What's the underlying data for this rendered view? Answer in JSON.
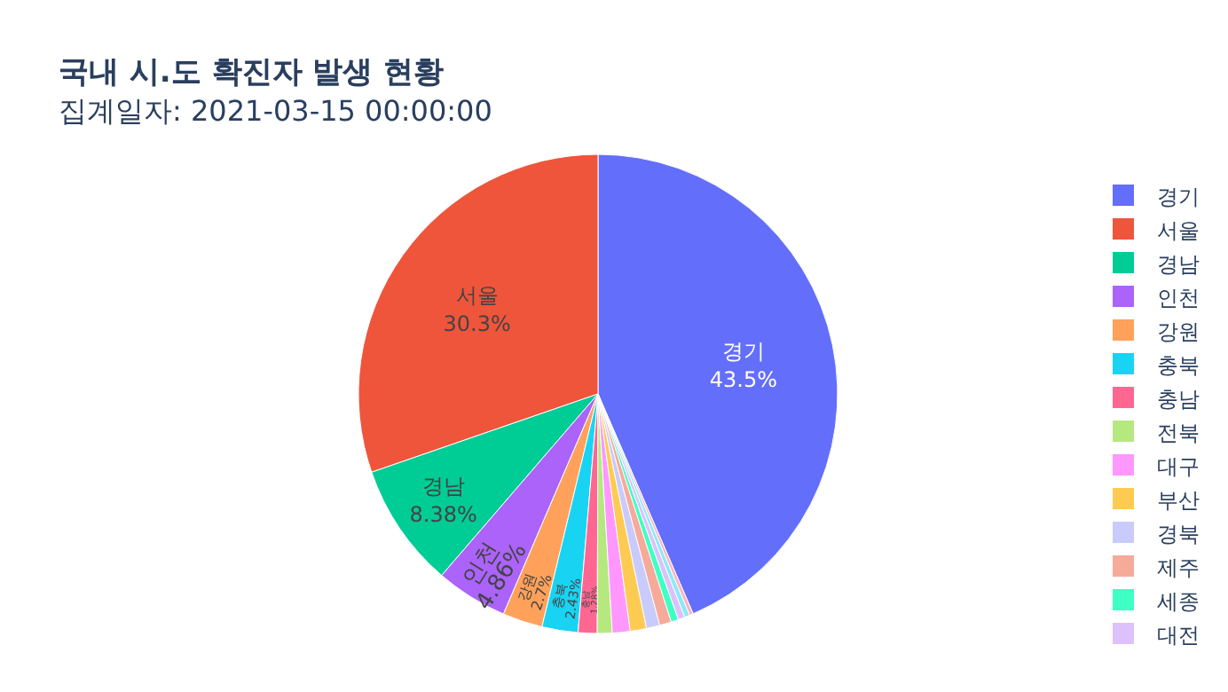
{
  "chart_data": {
    "type": "pie",
    "title": "국내 시.도 확진자 발생 현황",
    "subtitle": "집계일자: 2021-03-15 00:00:00",
    "categories": [
      "경기",
      "서울",
      "경남",
      "인천",
      "강원",
      "충북",
      "충남",
      "전북",
      "대구",
      "부산",
      "경북",
      "제주",
      "세종",
      "대전",
      null,
      null
    ],
    "values": [
      43.5,
      30.3,
      8.38,
      4.86,
      2.7,
      2.43,
      1.28,
      1.0,
      1.2,
      1.1,
      0.9,
      0.8,
      0.5,
      0.45,
      0.35,
      0.25
    ],
    "colors": [
      "#636efa",
      "#ef553b",
      "#00cc96",
      "#ab63fa",
      "#ffa15a",
      "#19d3f3",
      "#ff6692",
      "#b6e880",
      "#ff97ff",
      "#fecb52",
      "#c8cbfc",
      "#f6aa9a",
      "#3effc4",
      "#ddc1fc",
      "#8ce9f9",
      "#ffb2c1"
    ],
    "value_labels": [
      "43.5%",
      "30.3%",
      "8.38%",
      "4.86%",
      "2.7%",
      "2.43%",
      "1.28%",
      null,
      null,
      null,
      null,
      null,
      null,
      null,
      null,
      null
    ],
    "legend": "right"
  }
}
